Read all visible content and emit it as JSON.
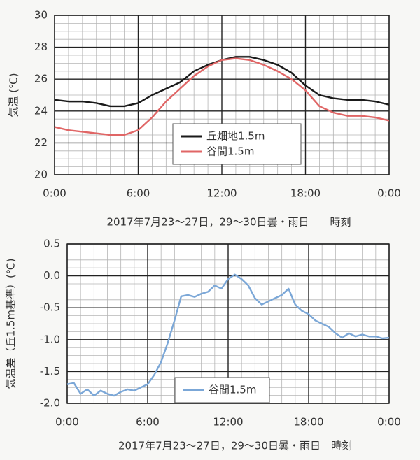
{
  "chart_data": [
    {
      "type": "line",
      "ylabel": "気温 (℃)",
      "xlabel": "2017年7月23～27日，29～30日曇・雨日　　時刻",
      "x": [
        0,
        1,
        2,
        3,
        4,
        5,
        6,
        7,
        8,
        9,
        10,
        11,
        12,
        13,
        14,
        15,
        16,
        17,
        18,
        19,
        20,
        21,
        22,
        23,
        24
      ],
      "series": [
        {
          "name": "丘畑地1.5m",
          "color": "#1a1a1a",
          "values": [
            24.7,
            24.6,
            24.6,
            24.5,
            24.3,
            24.3,
            24.5,
            25.0,
            25.4,
            25.8,
            26.5,
            26.9,
            27.2,
            27.4,
            27.4,
            27.2,
            26.9,
            26.4,
            25.6,
            25.0,
            24.8,
            24.7,
            24.7,
            24.6,
            24.4
          ]
        },
        {
          "name": "谷間1.5m",
          "color": "#e06666",
          "values": [
            23.0,
            22.8,
            22.7,
            22.6,
            22.5,
            22.5,
            22.8,
            23.6,
            24.6,
            25.4,
            26.2,
            26.8,
            27.2,
            27.3,
            27.2,
            26.9,
            26.5,
            26.0,
            25.3,
            24.3,
            23.9,
            23.7,
            23.7,
            23.6,
            23.4
          ]
        }
      ],
      "xlim": [
        0,
        24
      ],
      "xticks": [
        {
          "value": 0,
          "label": "0:00"
        },
        {
          "value": 6,
          "label": "6:00"
        },
        {
          "value": 12,
          "label": "12:00"
        },
        {
          "value": 18,
          "label": "18:00"
        },
        {
          "value": 24,
          "label": "0:00"
        }
      ],
      "ylim": [
        20,
        30
      ],
      "yticks": [
        20,
        22,
        24,
        26,
        28,
        30
      ],
      "grid": true,
      "legend": "center"
    },
    {
      "type": "line",
      "ylabel": "気温差（丘1.5m基準）(℃)",
      "xlabel": "2017年7月23～27日，29～30日曇・雨日　時刻",
      "x": [
        0,
        0.5,
        1,
        1.5,
        2,
        2.5,
        3,
        3.5,
        4,
        4.5,
        5,
        5.5,
        6,
        6.5,
        7,
        7.5,
        8,
        8.5,
        9,
        9.5,
        10,
        10.5,
        11,
        11.5,
        12,
        12.5,
        13,
        13.5,
        14,
        14.5,
        15,
        15.5,
        16,
        16.5,
        17,
        17.5,
        18,
        18.5,
        19,
        19.5,
        20,
        20.5,
        21,
        21.5,
        22,
        22.5,
        23,
        23.5,
        24
      ],
      "series": [
        {
          "name": "谷間1.5m",
          "color": "#7ba7d7",
          "values": [
            -1.7,
            -1.68,
            -1.85,
            -1.78,
            -1.88,
            -1.8,
            -1.85,
            -1.88,
            -1.82,
            -1.78,
            -1.8,
            -1.75,
            -1.7,
            -1.55,
            -1.35,
            -1.05,
            -0.7,
            -0.32,
            -0.3,
            -0.33,
            -0.28,
            -0.25,
            -0.15,
            -0.2,
            -0.05,
            0.02,
            -0.05,
            -0.15,
            -0.35,
            -0.45,
            -0.4,
            -0.35,
            -0.3,
            -0.2,
            -0.45,
            -0.55,
            -0.6,
            -0.7,
            -0.75,
            -0.8,
            -0.9,
            -0.97,
            -0.9,
            -0.95,
            -0.92,
            -0.95,
            -0.95,
            -0.98,
            -0.97
          ]
        }
      ],
      "xlim": [
        0,
        24
      ],
      "xticks": [
        {
          "value": 0,
          "label": "0:00"
        },
        {
          "value": 6,
          "label": "6:00"
        },
        {
          "value": 12,
          "label": "12:00"
        },
        {
          "value": 18,
          "label": "18:00"
        },
        {
          "value": 24,
          "label": "0:00"
        }
      ],
      "ylim": [
        -2,
        0.5
      ],
      "yticks": [
        {
          "value": -2,
          "label": "-2.0"
        },
        -1.5,
        {
          "value": -1,
          "label": "-1.0"
        },
        -0.5,
        {
          "value": 0,
          "label": "0.0"
        },
        0.5
      ],
      "grid": true,
      "legend": "lower center"
    }
  ]
}
